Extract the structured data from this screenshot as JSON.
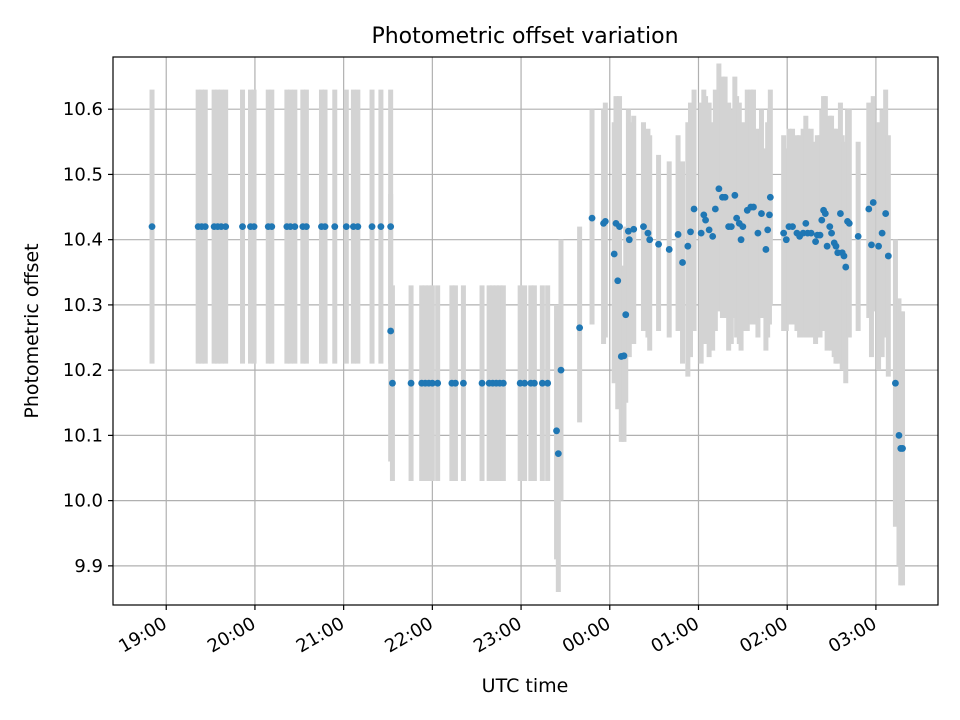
{
  "chart_data": {
    "type": "scatter",
    "title": "Photometric offset variation",
    "xlabel": "UTC time",
    "ylabel": "Photometric offset",
    "x_unit": "hours since 18:00 UTC",
    "xlim": [
      0.4,
      9.7
    ],
    "ylim": [
      9.84,
      10.68
    ],
    "grid": true,
    "x_ticks": [
      {
        "value": 1,
        "label": "19:00"
      },
      {
        "value": 2,
        "label": "20:00"
      },
      {
        "value": 3,
        "label": "21:00"
      },
      {
        "value": 4,
        "label": "22:00"
      },
      {
        "value": 5,
        "label": "23:00"
      },
      {
        "value": 6,
        "label": "00:00"
      },
      {
        "value": 7,
        "label": "01:00"
      },
      {
        "value": 8,
        "label": "02:00"
      },
      {
        "value": 9,
        "label": "03:00"
      }
    ],
    "y_ticks": [
      {
        "value": 9.9,
        "label": "9.9"
      },
      {
        "value": 10.0,
        "label": "10.0"
      },
      {
        "value": 10.1,
        "label": "10.1"
      },
      {
        "value": 10.2,
        "label": "10.2"
      },
      {
        "value": 10.3,
        "label": "10.3"
      },
      {
        "value": 10.4,
        "label": "10.4"
      },
      {
        "value": 10.5,
        "label": "10.5"
      },
      {
        "value": 10.6,
        "label": "10.6"
      }
    ],
    "marker_color": "#1f77b4",
    "errorbar_color": "#d3d3d3",
    "points": [
      [
        0.84,
        10.42,
        10.21,
        10.63
      ],
      [
        1.36,
        10.42,
        10.21,
        10.63
      ],
      [
        1.4,
        10.42,
        10.21,
        10.63
      ],
      [
        1.44,
        10.42,
        10.21,
        10.63
      ],
      [
        1.54,
        10.42,
        10.21,
        10.63
      ],
      [
        1.58,
        10.42,
        10.21,
        10.63
      ],
      [
        1.62,
        10.42,
        10.21,
        10.63
      ],
      [
        1.67,
        10.42,
        10.21,
        10.63
      ],
      [
        1.86,
        10.42,
        10.21,
        10.63
      ],
      [
        1.95,
        10.42,
        10.21,
        10.63
      ],
      [
        1.99,
        10.42,
        10.21,
        10.63
      ],
      [
        2.15,
        10.42,
        10.21,
        10.63
      ],
      [
        2.19,
        10.42,
        10.21,
        10.63
      ],
      [
        2.36,
        10.42,
        10.21,
        10.63
      ],
      [
        2.4,
        10.42,
        10.21,
        10.63
      ],
      [
        2.45,
        10.42,
        10.21,
        10.63
      ],
      [
        2.54,
        10.42,
        10.21,
        10.63
      ],
      [
        2.58,
        10.42,
        10.21,
        10.63
      ],
      [
        2.75,
        10.42,
        10.21,
        10.63
      ],
      [
        2.79,
        10.42,
        10.21,
        10.63
      ],
      [
        2.9,
        10.42,
        10.21,
        10.63
      ],
      [
        3.03,
        10.42,
        10.21,
        10.63
      ],
      [
        3.11,
        10.42,
        10.21,
        10.63
      ],
      [
        3.16,
        10.42,
        10.21,
        10.63
      ],
      [
        3.32,
        10.42,
        10.21,
        10.63
      ],
      [
        3.42,
        10.42,
        10.21,
        10.63
      ],
      [
        3.53,
        10.42,
        10.21,
        10.63
      ],
      [
        3.53,
        10.26,
        10.06,
        10.47
      ],
      [
        3.55,
        10.18,
        10.03,
        10.33
      ],
      [
        3.76,
        10.18,
        10.03,
        10.33
      ],
      [
        3.88,
        10.18,
        10.03,
        10.33
      ],
      [
        3.92,
        10.18,
        10.03,
        10.33
      ],
      [
        3.96,
        10.18,
        10.03,
        10.33
      ],
      [
        4.0,
        10.18,
        10.03,
        10.33
      ],
      [
        4.06,
        10.18,
        10.03,
        10.33
      ],
      [
        4.22,
        10.18,
        10.03,
        10.33
      ],
      [
        4.26,
        10.18,
        10.03,
        10.33
      ],
      [
        4.35,
        10.18,
        10.03,
        10.33
      ],
      [
        4.56,
        10.18,
        10.03,
        10.33
      ],
      [
        4.64,
        10.18,
        10.03,
        10.33
      ],
      [
        4.68,
        10.18,
        10.03,
        10.33
      ],
      [
        4.72,
        10.18,
        10.03,
        10.33
      ],
      [
        4.76,
        10.18,
        10.03,
        10.33
      ],
      [
        4.8,
        10.18,
        10.03,
        10.33
      ],
      [
        4.99,
        10.18,
        10.03,
        10.33
      ],
      [
        5.04,
        10.18,
        10.03,
        10.33
      ],
      [
        5.11,
        10.18,
        10.03,
        10.33
      ],
      [
        5.15,
        10.18,
        10.03,
        10.33
      ],
      [
        5.24,
        10.18,
        10.03,
        10.33
      ],
      [
        5.3,
        10.18,
        10.03,
        10.33
      ],
      [
        5.4,
        10.107,
        9.91,
        10.3
      ],
      [
        5.42,
        10.072,
        9.86,
        10.28
      ],
      [
        5.45,
        10.2,
        10.0,
        10.4
      ],
      [
        5.66,
        10.265,
        10.12,
        10.42
      ],
      [
        5.8,
        10.433,
        10.27,
        10.6
      ],
      [
        5.93,
        10.425,
        10.24,
        10.6
      ],
      [
        5.95,
        10.428,
        10.25,
        10.61
      ],
      [
        6.05,
        10.378,
        10.18,
        10.58
      ],
      [
        6.07,
        10.425,
        10.24,
        10.62
      ],
      [
        6.09,
        10.337,
        10.14,
        10.53
      ],
      [
        6.11,
        10.42,
        10.22,
        10.62
      ],
      [
        6.13,
        10.221,
        10.09,
        10.36
      ],
      [
        6.16,
        10.222,
        10.09,
        10.36
      ],
      [
        6.18,
        10.285,
        10.15,
        10.42
      ],
      [
        6.21,
        10.413,
        10.23,
        10.6
      ],
      [
        6.22,
        10.4,
        10.22,
        10.58
      ],
      [
        6.27,
        10.416,
        10.24,
        10.59
      ],
      [
        6.38,
        10.42,
        10.26,
        10.58
      ],
      [
        6.43,
        10.41,
        10.25,
        10.57
      ],
      [
        6.45,
        10.4,
        10.23,
        10.56
      ],
      [
        6.55,
        10.393,
        10.26,
        10.53
      ],
      [
        6.67,
        10.385,
        10.25,
        10.52
      ],
      [
        6.77,
        10.408,
        10.26,
        10.56
      ],
      [
        6.82,
        10.365,
        10.21,
        10.52
      ],
      [
        6.88,
        10.39,
        10.19,
        10.58
      ],
      [
        6.91,
        10.412,
        10.22,
        10.61
      ],
      [
        6.95,
        10.447,
        10.26,
        10.63
      ],
      [
        7.03,
        10.41,
        10.21,
        10.61
      ],
      [
        7.06,
        10.438,
        10.25,
        10.63
      ],
      [
        7.08,
        10.43,
        10.24,
        10.62
      ],
      [
        7.12,
        10.415,
        10.22,
        10.61
      ],
      [
        7.16,
        10.405,
        10.23,
        10.58
      ],
      [
        7.19,
        10.447,
        10.26,
        10.63
      ],
      [
        7.23,
        10.478,
        10.29,
        10.67
      ],
      [
        7.27,
        10.465,
        10.28,
        10.65
      ],
      [
        7.3,
        10.465,
        10.28,
        10.65
      ],
      [
        7.34,
        10.42,
        10.23,
        10.61
      ],
      [
        7.37,
        10.42,
        10.24,
        10.6
      ],
      [
        7.41,
        10.468,
        10.28,
        10.65
      ],
      [
        7.43,
        10.433,
        10.25,
        10.62
      ],
      [
        7.46,
        10.425,
        10.24,
        10.61
      ],
      [
        7.48,
        10.4,
        10.23,
        10.57
      ],
      [
        7.5,
        10.42,
        10.26,
        10.58
      ],
      [
        7.55,
        10.445,
        10.26,
        10.63
      ],
      [
        7.59,
        10.45,
        10.27,
        10.63
      ],
      [
        7.62,
        10.45,
        10.27,
        10.63
      ],
      [
        7.67,
        10.41,
        10.25,
        10.57
      ],
      [
        7.71,
        10.44,
        10.28,
        10.6
      ],
      [
        7.76,
        10.385,
        10.23,
        10.54
      ],
      [
        7.78,
        10.415,
        10.25,
        10.58
      ],
      [
        7.8,
        10.438,
        10.27,
        10.6
      ],
      [
        7.81,
        10.465,
        10.3,
        10.63
      ],
      [
        7.96,
        10.41,
        10.26,
        10.56
      ],
      [
        7.99,
        10.4,
        10.26,
        10.54
      ],
      [
        8.02,
        10.42,
        10.27,
        10.57
      ],
      [
        8.06,
        10.42,
        10.27,
        10.57
      ],
      [
        8.11,
        10.41,
        10.26,
        10.56
      ],
      [
        8.14,
        10.405,
        10.25,
        10.56
      ],
      [
        8.18,
        10.41,
        10.25,
        10.57
      ],
      [
        8.21,
        10.425,
        10.26,
        10.59
      ],
      [
        8.23,
        10.41,
        10.25,
        10.57
      ],
      [
        8.27,
        10.41,
        10.25,
        10.57
      ],
      [
        8.32,
        10.397,
        10.24,
        10.55
      ],
      [
        8.34,
        10.407,
        10.25,
        10.56
      ],
      [
        8.37,
        10.407,
        10.25,
        10.56
      ],
      [
        8.39,
        10.43,
        10.26,
        10.6
      ],
      [
        8.41,
        10.445,
        10.27,
        10.62
      ],
      [
        8.43,
        10.44,
        10.26,
        10.62
      ],
      [
        8.45,
        10.39,
        10.23,
        10.55
      ],
      [
        8.48,
        10.42,
        10.25,
        10.59
      ],
      [
        8.5,
        10.41,
        10.23,
        10.59
      ],
      [
        8.53,
        10.395,
        10.22,
        10.57
      ],
      [
        8.55,
        10.39,
        10.21,
        10.57
      ],
      [
        8.57,
        10.38,
        10.21,
        10.55
      ],
      [
        8.6,
        10.44,
        10.27,
        10.61
      ],
      [
        8.62,
        10.38,
        10.2,
        10.56
      ],
      [
        8.64,
        10.375,
        10.2,
        10.55
      ],
      [
        8.66,
        10.358,
        10.18,
        10.54
      ],
      [
        8.68,
        10.428,
        10.26,
        10.6
      ],
      [
        8.7,
        10.425,
        10.25,
        10.6
      ],
      [
        8.8,
        10.405,
        10.26,
        10.55
      ],
      [
        8.92,
        10.447,
        10.28,
        10.61
      ],
      [
        8.95,
        10.392,
        10.22,
        10.56
      ],
      [
        8.97,
        10.457,
        10.29,
        10.62
      ],
      [
        9.03,
        10.39,
        10.2,
        10.58
      ],
      [
        9.07,
        10.41,
        10.22,
        10.6
      ],
      [
        9.11,
        10.44,
        10.25,
        10.63
      ],
      [
        9.14,
        10.375,
        10.19,
        10.56
      ],
      [
        9.22,
        10.18,
        9.96,
        10.4
      ],
      [
        9.26,
        10.1,
        9.9,
        10.31
      ],
      [
        9.28,
        10.08,
        9.87,
        10.29
      ],
      [
        9.3,
        10.08,
        9.87,
        10.29
      ]
    ]
  }
}
